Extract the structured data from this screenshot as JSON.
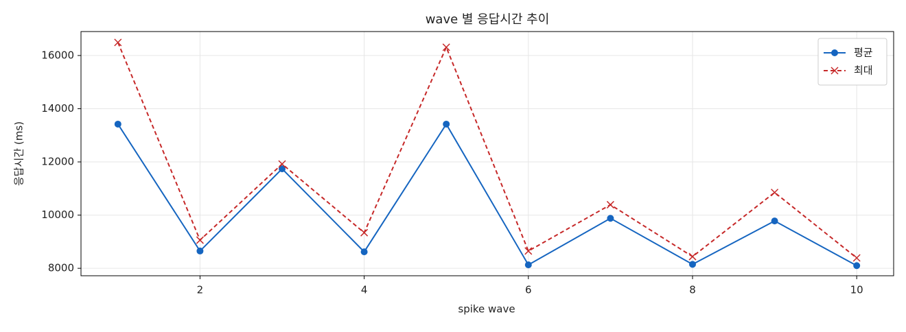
{
  "chart_data": {
    "type": "line",
    "title": "wave 별 응답시간 추이",
    "xlabel": "spike wave",
    "ylabel": "응답시간 (ms)",
    "x": [
      1,
      2,
      3,
      4,
      5,
      6,
      7,
      8,
      9,
      10
    ],
    "series": [
      {
        "name": "평균",
        "color": "#1565c0",
        "linestyle": "solid",
        "marker": "circle",
        "values": [
          13420,
          8650,
          11740,
          8620,
          13420,
          8130,
          9880,
          8150,
          9780,
          8100
        ]
      },
      {
        "name": "최대",
        "color": "#c62828",
        "linestyle": "dashed",
        "marker": "x",
        "values": [
          16490,
          9060,
          11920,
          9340,
          16310,
          8650,
          10390,
          8440,
          10850,
          8390
        ]
      }
    ],
    "xlim": [
      0.55,
      10.45
    ],
    "xticks": [
      2,
      4,
      6,
      8,
      10
    ],
    "ylim": [
      7720,
      16900
    ],
    "yticks": [
      8000,
      10000,
      12000,
      14000,
      16000
    ],
    "grid": true,
    "legend": "upper right"
  }
}
